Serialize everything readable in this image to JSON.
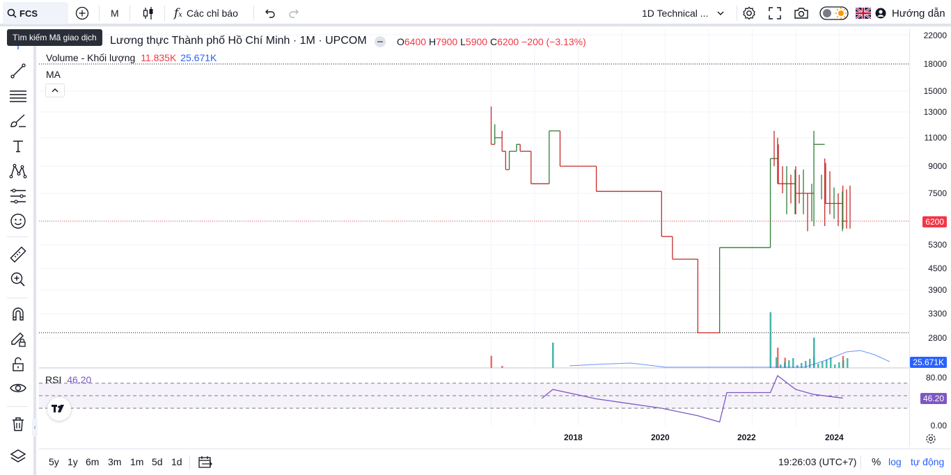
{
  "topbar": {
    "symbol": "FCS",
    "interval": "M",
    "indicators_label": "Các chỉ báo",
    "layout_name": "1D Technical ...",
    "help_label": "Hướng dẫn"
  },
  "tooltip": "Tìm kiếm Mã giao dịch",
  "legend": {
    "title": "Lương thực Thành phố Hồ Chí Minh · 1M · UPCOM",
    "o_label": "O",
    "o_value": "6400",
    "h_label": "H",
    "h_value": "7900",
    "l_label": "L",
    "l_value": "5900",
    "c_label": "C",
    "c_value": "6200",
    "change": "−200 (−3.13%)",
    "volume_label": "Volume - Khối lượng",
    "volume_value": "11.835K",
    "volume_ma": "25.671K",
    "ma_label": "MA"
  },
  "rsi": {
    "label": "RSI",
    "value": "46.20"
  },
  "price_scale": {
    "ticks": [
      "22000",
      "18000",
      "15000",
      "13000",
      "11000",
      "9000",
      "7500",
      "6200",
      "5300",
      "4500",
      "3900",
      "3300",
      "2800"
    ],
    "last_price": "6200",
    "volume_badge": "25.671K"
  },
  "rsi_scale": {
    "ticks": [
      "80.00",
      "0.00"
    ],
    "value_badge": "46.20"
  },
  "time_axis": [
    "2018",
    "2020",
    "2022",
    "2024"
  ],
  "bottombar": {
    "ranges": [
      "5y",
      "1y",
      "6m",
      "3m",
      "1m",
      "5d",
      "1d"
    ],
    "clock": "19:26:03 (UTC+7)",
    "percent": "%",
    "log": "log",
    "auto": "tự động"
  },
  "colors": {
    "up": "#26a69a",
    "down": "#ef5350",
    "candle_up": "#2e7d32",
    "candle_down": "#c62828",
    "rsi": "#7e57c2",
    "accent": "#2962ff"
  },
  "chart_data": {
    "type": "candlestick",
    "interval": "1M",
    "series": [
      {
        "name": "price",
        "type": "ohlc",
        "points": [
          {
            "x": "2017-01",
            "o": 12000,
            "h": 13500,
            "l": 10500,
            "c": 10500
          },
          {
            "x": "2017-02",
            "o": 10500,
            "h": 12000,
            "l": 10500,
            "c": 11000
          },
          {
            "x": "2017-04",
            "o": 11000,
            "h": 11500,
            "l": 10000,
            "c": 10000
          },
          {
            "x": "2017-05",
            "o": 10000,
            "h": 10000,
            "l": 8800,
            "c": 8800
          },
          {
            "x": "2017-06",
            "o": 8800,
            "h": 10000,
            "l": 8800,
            "c": 10000
          },
          {
            "x": "2017-08",
            "o": 10000,
            "h": 10500,
            "l": 10000,
            "c": 10500
          },
          {
            "x": "2017-09",
            "o": 10500,
            "h": 10500,
            "l": 10000,
            "c": 10000
          },
          {
            "x": "2017-12",
            "o": 10000,
            "h": 10000,
            "l": 8000,
            "c": 8000
          },
          {
            "x": "2018-05",
            "o": 8000,
            "h": 11500,
            "l": 8000,
            "c": 11500
          },
          {
            "x": "2018-08",
            "o": 11500,
            "h": 11500,
            "l": 9000,
            "c": 9000
          },
          {
            "x": "2019-06",
            "o": 9000,
            "h": 9000,
            "l": 7600,
            "c": 7600
          },
          {
            "x": "2020-12",
            "o": 7600,
            "h": 7600,
            "l": 5600,
            "c": 5600
          },
          {
            "x": "2021-03",
            "o": 5600,
            "h": 5600,
            "l": 4800,
            "c": 4800
          },
          {
            "x": "2021-10",
            "o": 4800,
            "h": 4800,
            "l": 2900,
            "c": 2900
          },
          {
            "x": "2022-04",
            "o": 2900,
            "h": 5200,
            "l": 2900,
            "c": 5200
          },
          {
            "x": "2023-06",
            "o": 5200,
            "h": 9500,
            "l": 5200,
            "c": 9500
          },
          {
            "x": "2023-08",
            "o": 11000,
            "h": 11000,
            "l": 8000,
            "c": 8000
          },
          {
            "x": "2024-01",
            "o": 8000,
            "h": 9000,
            "l": 6500,
            "c": 7500
          },
          {
            "x": "2024-06",
            "o": 7000,
            "h": 11500,
            "l": 6000,
            "c": 10500
          },
          {
            "x": "2024-09",
            "o": 9000,
            "h": 9500,
            "l": 6000,
            "c": 7000
          },
          {
            "x": "2025-02",
            "o": 6400,
            "h": 7900,
            "l": 5900,
            "c": 6200
          }
        ]
      },
      {
        "name": "Volume - Khối lượng",
        "type": "bar",
        "points": [
          {
            "x": "2017-01",
            "v": 12
          },
          {
            "x": "2017-04",
            "v": 2
          },
          {
            "x": "2018-06",
            "v": 25
          },
          {
            "x": "2023-06",
            "v": 55
          },
          {
            "x": "2023-08",
            "v": 20
          },
          {
            "x": "2023-10",
            "v": 10
          },
          {
            "x": "2024-06",
            "v": 30
          },
          {
            "x": "2025-02",
            "v": 11.835
          }
        ]
      },
      {
        "name": "RSI",
        "type": "line",
        "points": [
          {
            "x": "2018-03",
            "y": 46
          },
          {
            "x": "2018-06",
            "y": 60
          },
          {
            "x": "2019-06",
            "y": 45
          },
          {
            "x": "2020-12",
            "y": 30
          },
          {
            "x": "2021-10",
            "y": 18
          },
          {
            "x": "2022-04",
            "y": 8
          },
          {
            "x": "2022-06",
            "y": 55
          },
          {
            "x": "2023-06",
            "y": 55
          },
          {
            "x": "2023-08",
            "y": 82
          },
          {
            "x": "2024-01",
            "y": 60
          },
          {
            "x": "2024-06",
            "y": 52
          },
          {
            "x": "2025-02",
            "y": 46.2
          }
        ]
      }
    ],
    "ylim": [
      2800,
      22000
    ],
    "rsi_levels": [
      70,
      50,
      30
    ],
    "rsi_range": [
      0,
      80
    ],
    "x_ticks": [
      "2018",
      "2020",
      "2022",
      "2024"
    ],
    "last_price": 6200
  }
}
